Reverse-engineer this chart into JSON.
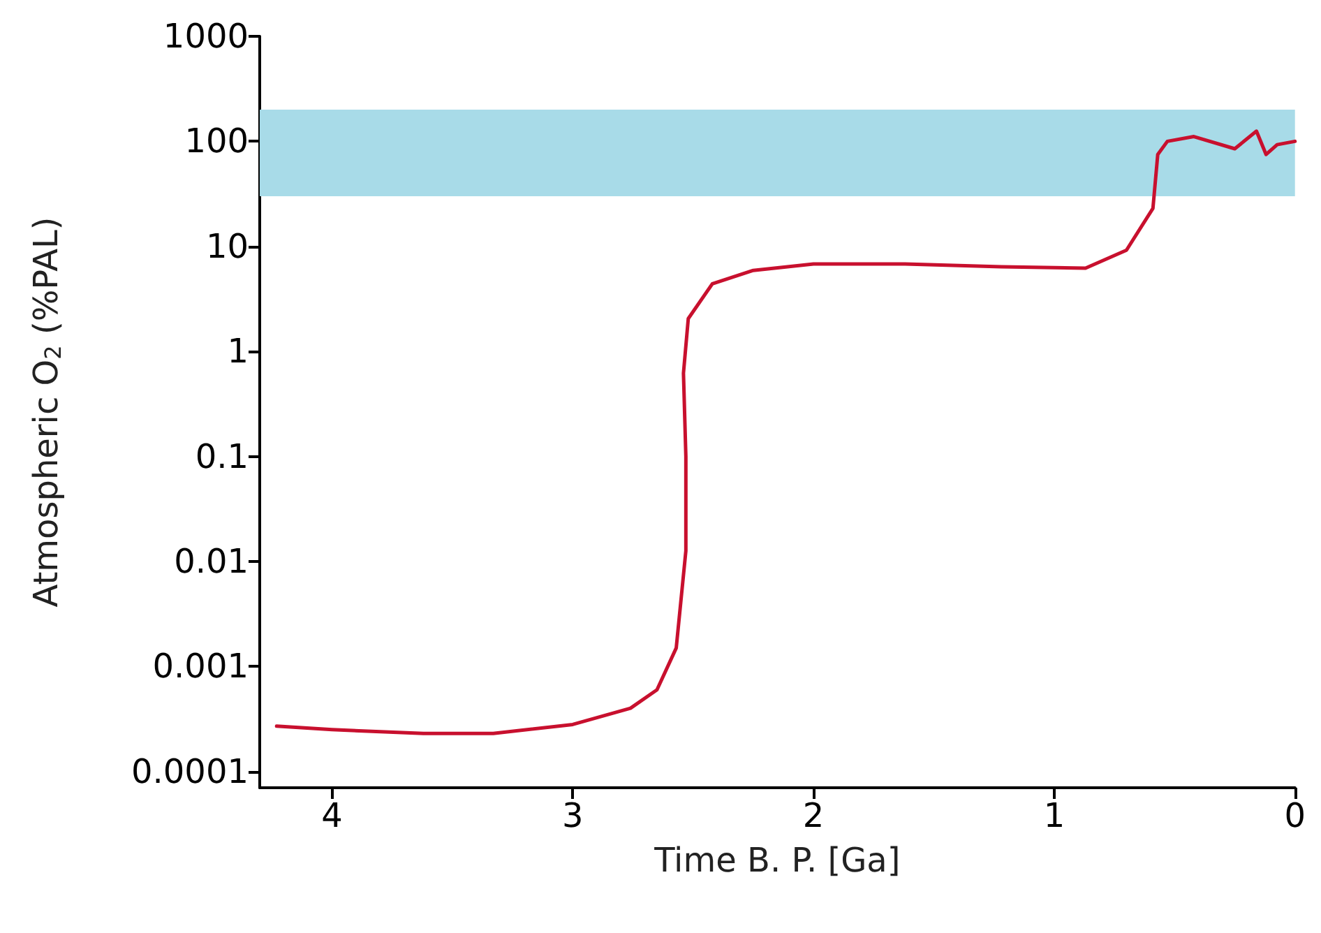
{
  "chart_data": {
    "type": "line",
    "xlabel": "Time B. P. [Ga]",
    "ylabel": "Atmospheric O$_{2}$ (%PAL)",
    "xlim": [
      4.3,
      0
    ],
    "xticks": [
      4,
      3,
      2,
      1,
      0
    ],
    "ylim": [
      7e-05,
      1000
    ],
    "yticks": [
      0.0001,
      0.001,
      0.01,
      0.1,
      1,
      10,
      100,
      1000
    ],
    "log": "y",
    "grid": false,
    "marker": "none",
    "line_style": "solid",
    "bands": [
      {
        "axis": "y",
        "from": 30,
        "to": 200,
        "color": "#a8dbe8"
      }
    ],
    "series": [
      {
        "color": "#c8102e",
        "x": [
          4.23,
          4,
          3.62,
          3.33,
          3,
          2.76,
          2.65,
          2.57,
          2.53,
          2.53,
          2.54,
          2.52,
          2.42,
          2.25,
          2,
          1.62,
          1.22,
          0.87,
          0.7,
          0.59,
          0.57,
          0.53,
          0.42,
          0.25,
          0.16,
          0.12,
          0.074,
          0
        ],
        "values": [
          0.00027,
          0.00025,
          0.00023,
          0.00023,
          0.00028,
          0.0004,
          0.0006,
          0.0015,
          0.0126,
          0.1,
          0.62,
          2.05,
          4.4,
          5.9,
          6.8,
          6.8,
          6.4,
          6.2,
          9.2,
          23,
          75,
          100,
          111,
          85,
          125,
          75,
          93,
          100
        ]
      }
    ]
  }
}
